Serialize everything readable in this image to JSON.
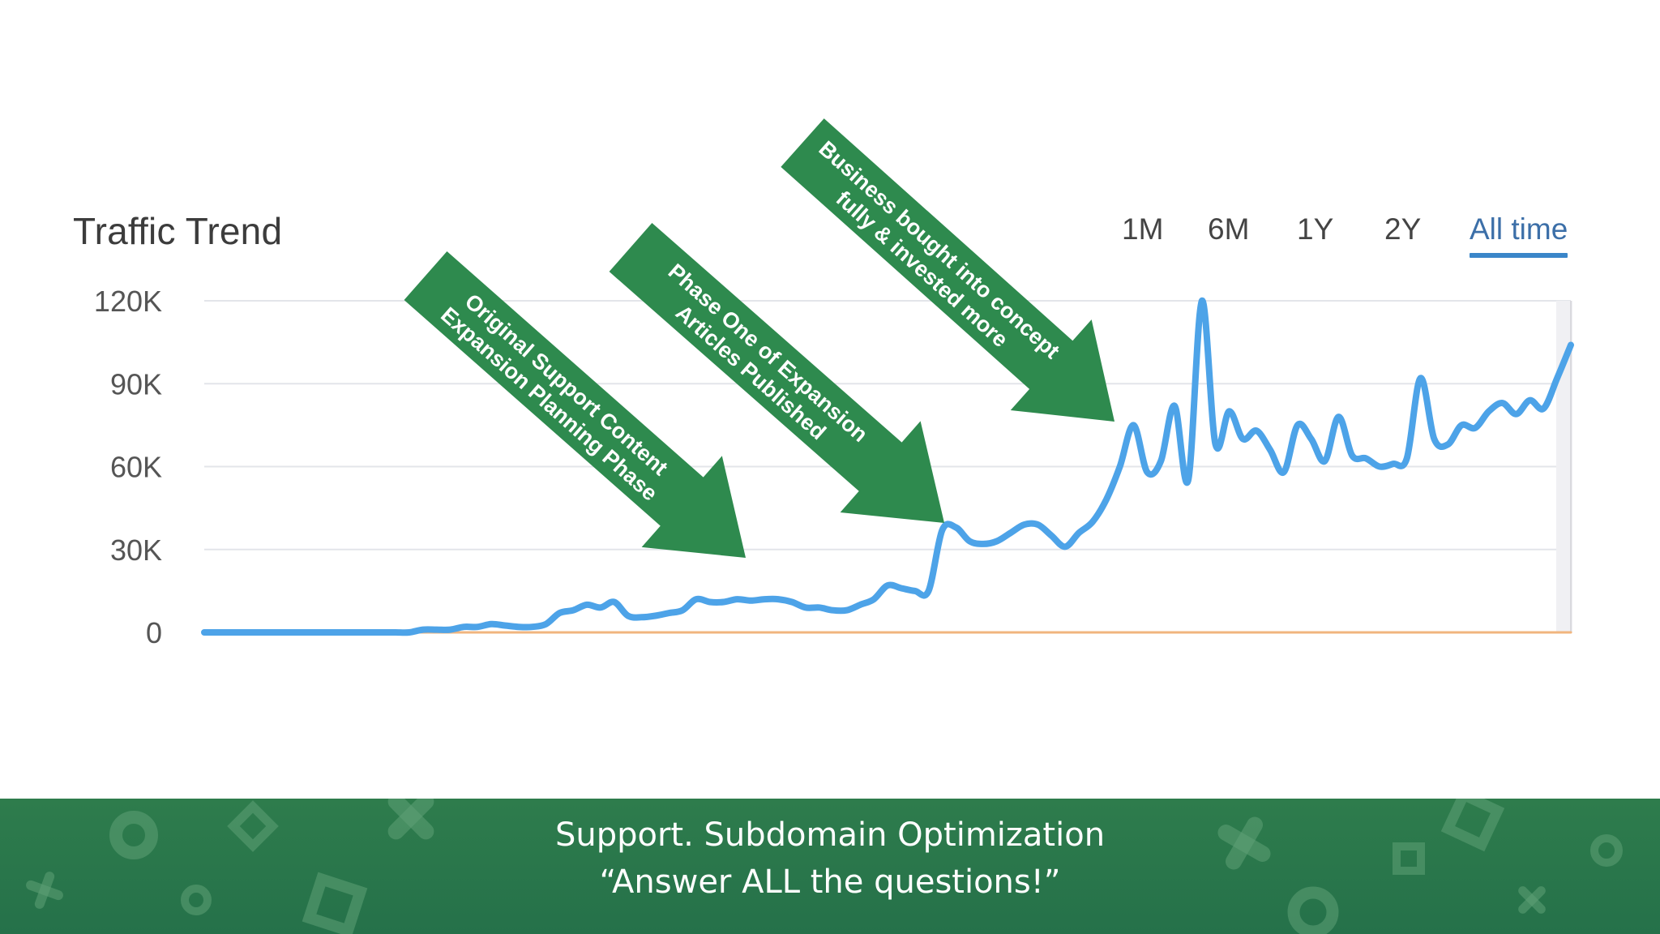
{
  "chart_data": {
    "type": "line",
    "title": "Traffic Trend",
    "xlabel": "",
    "ylabel": "",
    "ylim": [
      0,
      120000
    ],
    "yticks": [
      0,
      30000,
      60000,
      90000,
      120000
    ],
    "ytick_labels": [
      "0",
      "30K",
      "60K",
      "90K",
      "120K"
    ],
    "grid": true,
    "x": [
      0,
      1,
      2,
      3,
      4,
      5,
      6,
      7,
      8,
      9,
      10,
      11,
      12,
      13,
      14,
      15,
      16,
      17,
      18,
      19,
      20,
      21,
      22,
      23,
      24,
      25,
      26,
      27,
      28,
      29,
      30,
      31,
      32,
      33,
      34,
      35,
      36,
      37,
      38,
      39,
      40,
      41,
      42,
      43,
      44,
      45,
      46,
      47,
      48,
      49,
      50,
      51,
      52,
      53,
      54,
      55,
      56,
      57,
      58,
      59,
      60,
      61,
      62,
      63,
      64,
      65,
      66,
      67,
      68,
      69,
      70,
      71,
      72,
      73,
      74,
      75,
      76,
      77,
      78,
      79,
      80,
      81,
      82,
      83,
      84,
      85,
      86,
      87,
      88,
      89,
      90,
      91,
      92,
      93,
      94,
      95,
      96,
      97,
      98,
      99,
      100
    ],
    "series": [
      {
        "color": "#4da3e8",
        "values": [
          0,
          0,
          0,
          0,
          0,
          0,
          0,
          0,
          0,
          0,
          0,
          0,
          0,
          0,
          0,
          0,
          1000,
          1000,
          1000,
          2000,
          2000,
          3000,
          2500,
          2000,
          2000,
          3000,
          7000,
          8000,
          10000,
          9000,
          11000,
          6000,
          5500,
          6000,
          7000,
          8000,
          12000,
          11000,
          11000,
          12000,
          11500,
          12000,
          12000,
          11000,
          9000,
          9000,
          8000,
          8000,
          10000,
          12000,
          17000,
          16000,
          15000,
          15000,
          37000,
          38000,
          33000,
          32000,
          33000,
          36000,
          39000,
          39000,
          35000,
          31000,
          36000,
          40000,
          48000,
          60000,
          75000,
          58000,
          62000,
          82000,
          55000,
          120000,
          68000,
          80000,
          70000,
          73000,
          66000,
          58000,
          75000,
          70000,
          62000,
          78000,
          64000,
          63000,
          60000,
          61000,
          63000,
          92000,
          70000,
          68000,
          75000,
          74000,
          80000,
          83000,
          79000,
          84000,
          81000,
          92000,
          104000
        ]
      },
      {
        "color": "#f1b57e",
        "values": [
          0,
          0,
          0,
          0,
          0,
          0,
          0,
          0,
          0,
          0,
          0,
          0,
          0,
          0,
          0,
          0,
          0,
          0,
          0,
          0,
          0,
          0,
          0,
          0,
          0,
          0,
          0,
          0,
          0,
          0,
          0,
          0,
          0,
          0,
          0,
          0,
          0,
          0,
          0,
          0,
          0,
          0,
          0,
          0,
          0,
          0,
          0,
          0,
          0,
          0,
          0,
          0,
          0,
          0,
          0,
          0,
          0,
          0,
          0,
          0,
          0,
          0,
          0,
          0,
          0,
          0,
          0,
          0,
          0,
          0,
          0,
          0,
          0,
          0,
          0,
          0,
          0,
          0,
          0,
          0,
          0,
          0,
          0,
          0,
          0,
          0,
          0,
          0,
          0,
          0,
          0,
          0,
          0,
          0,
          0,
          0,
          0,
          0,
          0,
          0,
          0
        ]
      }
    ],
    "range_tabs": [
      {
        "label": "1M",
        "active": false
      },
      {
        "label": "6M",
        "active": false
      },
      {
        "label": "1Y",
        "active": false
      },
      {
        "label": "2Y",
        "active": false
      },
      {
        "label": "All time",
        "active": true
      }
    ],
    "annotations": [
      {
        "lines": [
          "Original Support Content",
          "Expansion Planning Phase"
        ]
      },
      {
        "lines": [
          "Phase One of Expansion",
          "Articles Published"
        ]
      },
      {
        "lines": [
          "Business bought into concept",
          "fully & invested more"
        ]
      }
    ],
    "annotation_color": "#2e8a4e"
  },
  "footer": {
    "line1": "Support. Subdomain Optimization",
    "line2": "“Answer ALL the questions!”",
    "background_color": "#2e7c4c"
  }
}
